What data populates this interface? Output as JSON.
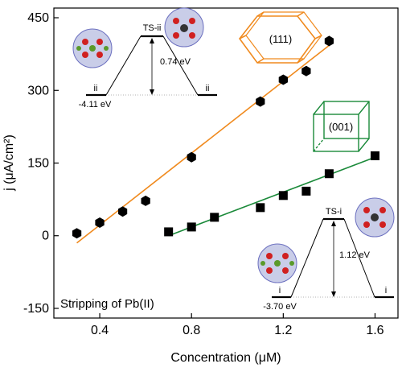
{
  "chart_data": {
    "type": "scatter",
    "xlabel": "Concentration (μM)",
    "ylabel": "j (μA/cm²)",
    "xlim": [
      0.2,
      1.7
    ],
    "ylim": [
      -170,
      470
    ],
    "x_ticks": [
      0.4,
      0.8,
      1.2,
      1.6
    ],
    "x_tick_labels": [
      "0.4",
      "0.8",
      "1.2",
      "1.6"
    ],
    "y_ticks": [
      -150,
      0,
      150,
      300,
      450
    ],
    "y_tick_labels": [
      "-150",
      "0",
      "150",
      "300",
      "450"
    ],
    "grid": false,
    "series": [
      {
        "marker": "hexagon",
        "color": "#000000",
        "fit_color": "#f08a1e",
        "x": [
          0.3,
          0.4,
          0.5,
          0.6,
          0.8,
          1.1,
          1.2,
          1.3,
          1.4
        ],
        "y": [
          5,
          27,
          50,
          72,
          162,
          277,
          322,
          340,
          402
        ],
        "fit": {
          "x": [
            0.3,
            1.4
          ],
          "y": [
            -15,
            393
          ]
        }
      },
      {
        "marker": "square",
        "color": "#000000",
        "fit_color": "#1b8a3a",
        "x": [
          0.7,
          0.8,
          0.9,
          1.1,
          1.2,
          1.3,
          1.4,
          1.6
        ],
        "y": [
          8,
          18,
          38,
          58,
          83,
          92,
          128,
          165
        ],
        "fit": {
          "x": [
            0.7,
            1.6
          ],
          "y": [
            0,
            162
          ]
        }
      }
    ],
    "annotations": {
      "stripping_label": "Stripping of Pb(II)",
      "facet_111": "(111)",
      "facet_001": "(001)",
      "ts_ii": {
        "ts": "TS-ii",
        "state": "ii",
        "energy": "-4.11 eV",
        "barrier": "0.74 eV"
      },
      "ts_i": {
        "ts": "TS-i",
        "state": "i",
        "energy": "-3.70 eV",
        "barrier": "1.12 eV"
      }
    },
    "colors": {
      "orange": "#f08a1e",
      "green": "#1b8a3a"
    }
  }
}
